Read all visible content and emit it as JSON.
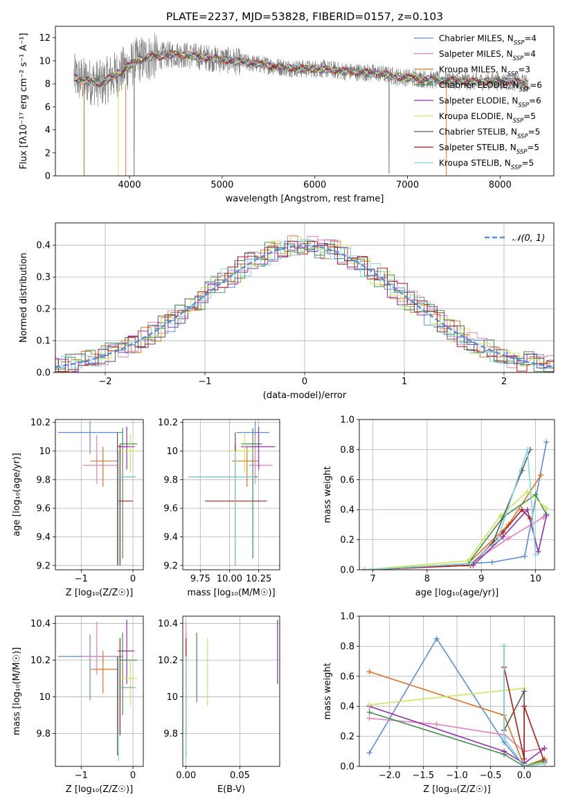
{
  "figure": {
    "title": "PLATE=2237, MJD=53828, FIBERID=0157, z=0.103"
  },
  "colors": {
    "Chabrier MILES": "#5b8bd9",
    "Salpeter MILES": "#e87fbe",
    "Kroupa MILES": "#e0711f",
    "Chabrier ELODIE": "#3f8f4a",
    "Salpeter ELODIE": "#8f2fae",
    "Kroupa ELODIE": "#c8e85a",
    "Chabrier STELIB": "#555555",
    "Salpeter STELIB": "#b01818",
    "Kroupa STELIB": "#7fd8e0"
  },
  "chart_data": [
    {
      "id": "spectrum",
      "type": "line",
      "xlabel": "wavelength [Angstrom, rest frame]",
      "ylabel": "Flux [fλ10⁻¹⁷ erg cm⁻² s⁻¹ A⁻¹]",
      "xlim": [
        3200,
        8580
      ],
      "ylim": [
        0,
        13
      ],
      "xticks": [
        4000,
        5000,
        6000,
        7000,
        8000
      ],
      "yticks": [
        0,
        2,
        4,
        6,
        8,
        10,
        12
      ],
      "legend_position": "top-right",
      "legend": [
        {
          "name": "Chabrier MILES",
          "nssp": "4"
        },
        {
          "name": "Salpeter MILES",
          "nssp": "4"
        },
        {
          "name": "Kroupa MILES",
          "nssp": "3"
        },
        {
          "name": "Chabrier ELODIE",
          "nssp": "6"
        },
        {
          "name": "Salpeter ELODIE",
          "nssp": "6"
        },
        {
          "name": "Kroupa ELODIE",
          "nssp": "5"
        },
        {
          "name": "Chabrier STELIB",
          "nssp": "5"
        },
        {
          "name": "Salpeter STELIB",
          "nssp": "5"
        },
        {
          "name": "Kroupa STELIB",
          "nssp": "5"
        }
      ],
      "continuum": {
        "wavelength": [
          3400,
          3500,
          3600,
          3700,
          3800,
          3900,
          4000,
          4100,
          4300,
          4500,
          4700,
          4900,
          5100,
          5300,
          5500,
          5700,
          5900,
          6100,
          6300,
          6500,
          6700,
          6900,
          7100,
          7300,
          7500,
          7700,
          7900,
          8100,
          8300
        ],
        "flux": [
          8.6,
          8.3,
          8.2,
          8.0,
          8.6,
          9.0,
          9.6,
          10.1,
          10.4,
          10.6,
          10.4,
          10.2,
          10.0,
          9.8,
          9.6,
          9.4,
          9.3,
          9.3,
          9.1,
          9.0,
          8.9,
          8.6,
          8.5,
          8.3,
          8.3,
          8.2,
          8.2,
          8.2,
          8.0
        ]
      }
    },
    {
      "id": "residuals",
      "type": "bar",
      "xlabel": "(data-model)/error",
      "ylabel": "Normed distribution",
      "xlim": [
        -2.5,
        2.5
      ],
      "ylim": [
        0,
        0.47
      ],
      "xticks": [
        -2,
        -1,
        0,
        1,
        2
      ],
      "yticks": [
        0.0,
        0.1,
        0.2,
        0.3,
        0.4
      ],
      "grid": true,
      "legend_position": "top-right",
      "reference_curve": "𝒩(0, 1)",
      "bin_width": 0.1
    },
    {
      "id": "age-vs-Z",
      "type": "scatter",
      "xlabel": "Z [log₁₀(Z/Z☉)]",
      "ylabel": "age  [log₁₀(age/yr)]",
      "xlim": [
        -1.5,
        0.2
      ],
      "ylim": [
        9.17,
        10.22
      ],
      "xticks": [
        -1,
        0
      ],
      "yticks": [
        9.2,
        9.4,
        9.6,
        9.8,
        10.0,
        10.2
      ],
      "grid": true,
      "points": [
        {
          "series": "Chabrier MILES",
          "x": -0.83,
          "y": 10.13,
          "xlo": -1.45,
          "xhi": -0.2,
          "ylo": 9.98,
          "yhi": 10.21
        },
        {
          "series": "Salpeter MILES",
          "x": -0.7,
          "y": 9.9,
          "xlo": -0.97,
          "xhi": -0.3,
          "ylo": 9.77,
          "yhi": 10.11
        },
        {
          "series": "Kroupa MILES",
          "x": -0.58,
          "y": 9.93,
          "xlo": -0.82,
          "xhi": -0.28,
          "ylo": 9.75,
          "yhi": 10.03
        },
        {
          "series": "Chabrier ELODIE",
          "x": -0.2,
          "y": 10.05,
          "xlo": -0.25,
          "xhi": 0.08,
          "ylo": 9.25,
          "yhi": 10.16
        },
        {
          "series": "Salpeter ELODIE",
          "x": -0.12,
          "y": 10.03,
          "xlo": -0.3,
          "xhi": 0.03,
          "ylo": 9.87,
          "yhi": 10.17
        },
        {
          "series": "Kroupa ELODIE",
          "x": -0.05,
          "y": 10.0,
          "xlo": -0.22,
          "xhi": 0.08,
          "ylo": 9.85,
          "yhi": 10.12
        },
        {
          "series": "Chabrier STELIB",
          "x": -0.3,
          "y": 9.82,
          "xlo": -0.3,
          "xhi": 0.05,
          "ylo": 9.2,
          "yhi": 10.13
        },
        {
          "series": "Salpeter STELIB",
          "x": -0.25,
          "y": 9.65,
          "xlo": -0.3,
          "xhi": 0.0,
          "ylo": 9.2,
          "yhi": 10.05
        },
        {
          "series": "Kroupa STELIB",
          "x": -0.28,
          "y": 9.82,
          "xlo": -0.3,
          "xhi": 0.05,
          "ylo": 9.2,
          "yhi": 10.0
        }
      ]
    },
    {
      "id": "age-vs-mass",
      "type": "scatter",
      "xlabel": "mass [log₁₀(M/M☉)]",
      "ylabel": "",
      "xlim": [
        9.6,
        10.43
      ],
      "ylim": [
        9.17,
        10.22
      ],
      "xticks": [
        9.75,
        10.0,
        10.25
      ],
      "xticklabels": [
        "9.75",
        "10.00",
        "10.25"
      ],
      "yticks": [
        9.2,
        9.4,
        9.6,
        9.8,
        10.0,
        10.2
      ],
      "grid": true,
      "points": [
        {
          "series": "Chabrier MILES",
          "x": 10.22,
          "y": 10.13,
          "xlo": 10.06,
          "xhi": 10.34,
          "ylo": 9.98,
          "yhi": 10.21
        },
        {
          "series": "Salpeter MILES",
          "x": 10.22,
          "y": 9.9,
          "xlo": 10.17,
          "xhi": 10.37,
          "ylo": 9.77,
          "yhi": 10.11
        },
        {
          "series": "Kroupa MILES",
          "x": 10.15,
          "y": 9.93,
          "xlo": 10.02,
          "xhi": 10.25,
          "ylo": 9.75,
          "yhi": 10.03
        },
        {
          "series": "Chabrier ELODIE",
          "x": 10.2,
          "y": 10.05,
          "xlo": 10.1,
          "xhi": 10.28,
          "ylo": 9.25,
          "yhi": 10.16
        },
        {
          "series": "Salpeter ELODIE",
          "x": 10.25,
          "y": 10.03,
          "xlo": 10.1,
          "xhi": 10.39,
          "ylo": 9.87,
          "yhi": 10.17
        },
        {
          "series": "Kroupa ELODIE",
          "x": 10.13,
          "y": 10.0,
          "xlo": 10.0,
          "xhi": 10.22,
          "ylo": 9.85,
          "yhi": 10.12
        },
        {
          "series": "Chabrier STELIB",
          "x": 10.05,
          "y": 9.82,
          "xlo": 9.65,
          "xhi": 10.24,
          "ylo": 9.2,
          "yhi": 10.13
        },
        {
          "series": "Salpeter STELIB",
          "x": 10.05,
          "y": 9.65,
          "xlo": 9.79,
          "xhi": 10.32,
          "ylo": 9.2,
          "yhi": 10.05
        },
        {
          "series": "Kroupa STELIB",
          "x": 10.05,
          "y": 9.82,
          "xlo": 9.65,
          "xhi": 10.22,
          "ylo": 9.2,
          "yhi": 10.0
        }
      ]
    },
    {
      "id": "weight-vs-age",
      "type": "line",
      "xlabel": "age  [log₁₀(age/yr)]",
      "ylabel": "mass weight",
      "xlim": [
        6.75,
        10.35
      ],
      "ylim": [
        0,
        1
      ],
      "xticks": [
        7,
        8,
        9,
        10
      ],
      "yticks": [
        0.0,
        0.2,
        0.4,
        0.6,
        0.8,
        1.0
      ],
      "grid": true,
      "series": [
        {
          "name": "Chabrier MILES",
          "x": [
            6.85,
            9.2,
            9.8,
            10.2
          ],
          "y": [
            0.0,
            0.05,
            0.09,
            0.85
          ]
        },
        {
          "name": "Salpeter MILES",
          "x": [
            6.85,
            8.8,
            9.5,
            10.15
          ],
          "y": [
            0.0,
            0.04,
            0.21,
            0.35
          ]
        },
        {
          "name": "Kroupa MILES",
          "x": [
            6.85,
            8.75,
            9.5,
            10.1
          ],
          "y": [
            0.0,
            0.04,
            0.3,
            0.63
          ]
        },
        {
          "name": "Chabrier ELODIE",
          "x": [
            6.85,
            8.75,
            9.4,
            10.0,
            10.2
          ],
          "y": [
            0.0,
            0.04,
            0.35,
            0.5,
            0.37
          ]
        },
        {
          "name": "Salpeter ELODIE",
          "x": [
            6.85,
            8.85,
            9.4,
            9.85,
            10.05,
            10.2
          ],
          "y": [
            0.0,
            0.03,
            0.22,
            0.4,
            0.12,
            0.36
          ]
        },
        {
          "name": "Kroupa ELODIE",
          "x": [
            6.85,
            8.75,
            9.35,
            9.85,
            10.2
          ],
          "y": [
            0.0,
            0.06,
            0.36,
            0.52,
            0.41
          ]
        },
        {
          "name": "Chabrier STELIB",
          "x": [
            6.85,
            8.8,
            9.2,
            9.75,
            9.9
          ],
          "y": [
            0.0,
            0.03,
            0.17,
            0.66,
            0.8
          ]
        },
        {
          "name": "Salpeter STELIB",
          "x": [
            6.85,
            8.8,
            9.4,
            9.75,
            9.9
          ],
          "y": [
            0.0,
            0.03,
            0.25,
            0.4,
            0.34
          ]
        },
        {
          "name": "Kroupa STELIB",
          "x": [
            6.85,
            8.8,
            9.3,
            9.85,
            10.0
          ],
          "y": [
            0.0,
            0.04,
            0.2,
            0.8,
            0.1
          ]
        }
      ]
    },
    {
      "id": "mass-vs-Z",
      "type": "scatter",
      "xlabel": "Z [log₁₀(Z/Z☉)]",
      "ylabel": "mass [log₁₀(M/M☉)]",
      "xlim": [
        -1.5,
        0.2
      ],
      "ylim": [
        9.62,
        10.44
      ],
      "xticks": [
        -1,
        0
      ],
      "yticks": [
        9.8,
        10.0,
        10.2,
        10.4
      ],
      "grid": true,
      "points": [
        {
          "series": "Chabrier MILES",
          "x": -0.83,
          "y": 10.22,
          "xlo": -1.45,
          "xhi": -0.2,
          "ylo": 9.98,
          "yhi": 10.34
        },
        {
          "series": "Salpeter MILES",
          "x": -0.7,
          "y": 10.22,
          "xlo": -0.97,
          "xhi": -0.3,
          "ylo": 10.12,
          "yhi": 10.41
        },
        {
          "series": "Kroupa MILES",
          "x": -0.58,
          "y": 10.15,
          "xlo": -0.82,
          "xhi": -0.28,
          "ylo": 10.02,
          "yhi": 10.25
        },
        {
          "series": "Chabrier ELODIE",
          "x": -0.2,
          "y": 10.2,
          "xlo": -0.25,
          "xhi": 0.08,
          "ylo": 9.9,
          "yhi": 10.35
        },
        {
          "series": "Salpeter ELODIE",
          "x": -0.12,
          "y": 10.25,
          "xlo": -0.3,
          "xhi": 0.03,
          "ylo": 10.07,
          "yhi": 10.42
        },
        {
          "series": "Kroupa ELODIE",
          "x": -0.05,
          "y": 10.1,
          "xlo": -0.22,
          "xhi": 0.08,
          "ylo": 9.95,
          "yhi": 10.2
        },
        {
          "series": "Chabrier STELIB",
          "x": -0.3,
          "y": 10.05,
          "xlo": -0.3,
          "xhi": 0.05,
          "ylo": 9.68,
          "yhi": 10.22
        },
        {
          "series": "Salpeter STELIB",
          "x": -0.25,
          "y": 10.05,
          "xlo": -0.3,
          "xhi": 0.0,
          "ylo": 9.79,
          "yhi": 10.32
        },
        {
          "series": "Kroupa STELIB",
          "x": -0.28,
          "y": 10.05,
          "xlo": -0.3,
          "xhi": 0.05,
          "ylo": 9.65,
          "yhi": 10.22
        }
      ]
    },
    {
      "id": "mass-vs-ebv",
      "type": "scatter",
      "xlabel": "E(B-V)",
      "ylabel": "",
      "xlim": [
        -0.003,
        0.087
      ],
      "ylim": [
        9.62,
        10.44
      ],
      "xticks": [
        0.0,
        0.05
      ],
      "xticklabels": [
        "0.00",
        "0.05"
      ],
      "yticks": [
        9.8,
        10.0,
        10.2,
        10.4
      ],
      "grid": true,
      "points": [
        {
          "series": "Chabrier MILES",
          "x": 0.0,
          "y": 10.22,
          "ylo": 9.98,
          "yhi": 10.34
        },
        {
          "series": "Salpeter MILES",
          "x": 0.0,
          "y": 10.22,
          "ylo": 10.12,
          "yhi": 10.41
        },
        {
          "series": "Kroupa MILES",
          "x": 0.0,
          "y": 10.15,
          "ylo": 10.02,
          "yhi": 10.25
        },
        {
          "series": "Chabrier ELODIE",
          "x": 0.01,
          "y": 10.2,
          "ylo": 9.97,
          "yhi": 10.35
        },
        {
          "series": "Salpeter ELODIE",
          "x": 0.085,
          "y": 10.25,
          "ylo": 10.07,
          "yhi": 10.42
        },
        {
          "series": "Kroupa ELODIE",
          "x": 0.02,
          "y": 10.1,
          "ylo": 9.95,
          "yhi": 10.32
        },
        {
          "series": "Chabrier STELIB",
          "x": 0.0,
          "y": 10.05,
          "ylo": 9.68,
          "yhi": 10.22
        },
        {
          "series": "Salpeter STELIB",
          "x": 0.0,
          "y": 10.05,
          "ylo": 9.79,
          "yhi": 10.32
        },
        {
          "series": "Kroupa STELIB",
          "x": 0.0,
          "y": 10.05,
          "ylo": 9.65,
          "yhi": 10.22
        }
      ]
    },
    {
      "id": "weight-vs-Z",
      "type": "line",
      "xlabel": "Z [log₁₀(Z/Z☉)]",
      "ylabel": "mass weight",
      "xlim": [
        -2.45,
        0.45
      ],
      "ylim": [
        0,
        1
      ],
      "xticks": [
        -2.0,
        -1.5,
        -1.0,
        -0.5,
        0.0
      ],
      "xticklabels": [
        "−2.0",
        "−1.5",
        "−1.0",
        "−0.5",
        "0.0"
      ],
      "yticks": [
        0.0,
        0.2,
        0.4,
        0.6,
        0.8,
        1.0
      ],
      "grid": true,
      "series": [
        {
          "name": "Chabrier MILES",
          "x": [
            -2.3,
            -1.3,
            -0.3,
            0.0,
            0.3
          ],
          "y": [
            0.09,
            0.85,
            0.16,
            0.0,
            0.05
          ]
        },
        {
          "name": "Salpeter MILES",
          "x": [
            -2.3,
            -1.3,
            -0.3,
            0.0,
            0.3
          ],
          "y": [
            0.32,
            0.28,
            0.21,
            0.1,
            0.12
          ]
        },
        {
          "name": "Kroupa MILES",
          "x": [
            -2.3,
            -0.3,
            0.0,
            0.3
          ],
          "y": [
            0.63,
            0.34,
            0.0,
            0.05
          ]
        },
        {
          "name": "Chabrier ELODIE",
          "x": [
            -2.3,
            -0.3,
            0.0,
            0.3
          ],
          "y": [
            0.36,
            0.08,
            0.0,
            0.04
          ]
        },
        {
          "name": "Salpeter ELODIE",
          "x": [
            -2.3,
            -0.3,
            0.0,
            0.3
          ],
          "y": [
            0.4,
            0.1,
            0.02,
            0.12
          ]
        },
        {
          "name": "Kroupa ELODIE",
          "x": [
            -2.3,
            0.0,
            0.0,
            0.3
          ],
          "y": [
            0.41,
            0.52,
            0.0,
            0.03
          ]
        },
        {
          "name": "Chabrier STELIB",
          "x": [
            -0.3,
            -0.3,
            0.0,
            0.0,
            0.3
          ],
          "y": [
            0.8,
            0.24,
            0.5,
            0.0,
            0.02
          ]
        },
        {
          "name": "Salpeter STELIB",
          "x": [
            -0.3,
            0.0,
            0.0,
            0.3
          ],
          "y": [
            0.66,
            0.05,
            0.4,
            0.03
          ]
        },
        {
          "name": "Kroupa STELIB",
          "x": [
            -0.3,
            -0.3,
            0.0,
            0.3
          ],
          "y": [
            0.8,
            0.19,
            0.0,
            0.02
          ]
        }
      ]
    }
  ]
}
